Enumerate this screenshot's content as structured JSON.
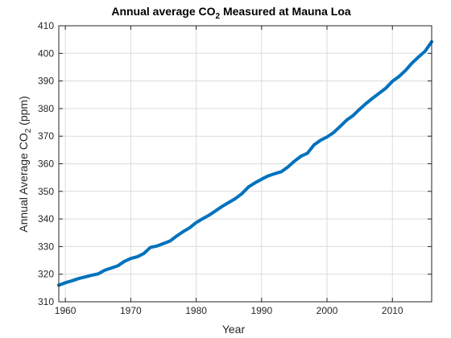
{
  "chart_data": {
    "type": "line",
    "title": {
      "prefix": "Annual average CO",
      "subscript": "2",
      "suffix": " Measured at Mauna Loa"
    },
    "xlabel": "Year",
    "ylabel": {
      "prefix": "Annual Average CO",
      "subscript": "2",
      "suffix": " (ppm)"
    },
    "xlim": [
      1959,
      2016
    ],
    "ylim": [
      310,
      410
    ],
    "x_ticks": [
      1960,
      1970,
      1980,
      1990,
      2000,
      2010
    ],
    "x_tick_labels": [
      "1960",
      "1970",
      "1980",
      "1990",
      "2000",
      "2010"
    ],
    "y_ticks": [
      310,
      320,
      330,
      340,
      350,
      360,
      370,
      380,
      390,
      400,
      410
    ],
    "y_tick_labels": [
      "310",
      "320",
      "330",
      "340",
      "350",
      "360",
      "370",
      "380",
      "390",
      "400",
      "410"
    ],
    "grid": true,
    "line_color": "#0072bd",
    "series": [
      {
        "x": [
          1959,
          1960,
          1961,
          1962,
          1963,
          1964,
          1965,
          1966,
          1967,
          1968,
          1969,
          1970,
          1971,
          1972,
          1973,
          1974,
          1975,
          1976,
          1977,
          1978,
          1979,
          1980,
          1981,
          1982,
          1983,
          1984,
          1985,
          1986,
          1987,
          1988,
          1989,
          1990,
          1991,
          1992,
          1993,
          1994,
          1995,
          1996,
          1997,
          1998,
          1999,
          2000,
          2001,
          2002,
          2003,
          2004,
          2005,
          2006,
          2007,
          2008,
          2009,
          2010,
          2011,
          2012,
          2013,
          2014,
          2015,
          2016
        ],
        "values": [
          316.0,
          316.9,
          317.6,
          318.4,
          319.0,
          319.6,
          320.1,
          321.4,
          322.2,
          323.0,
          324.6,
          325.7,
          326.3,
          327.5,
          329.7,
          330.2,
          331.1,
          332.0,
          333.8,
          335.4,
          336.8,
          338.7,
          340.1,
          341.4,
          343.0,
          344.6,
          346.0,
          347.4,
          349.2,
          351.6,
          353.1,
          354.4,
          355.6,
          356.4,
          357.1,
          358.8,
          360.9,
          362.7,
          363.8,
          366.8,
          368.5,
          369.7,
          371.3,
          373.5,
          375.8,
          377.5,
          379.8,
          381.9,
          383.8,
          385.6,
          387.4,
          389.9,
          391.6,
          393.8,
          396.5,
          398.7,
          400.8,
          404.2
        ]
      }
    ]
  }
}
